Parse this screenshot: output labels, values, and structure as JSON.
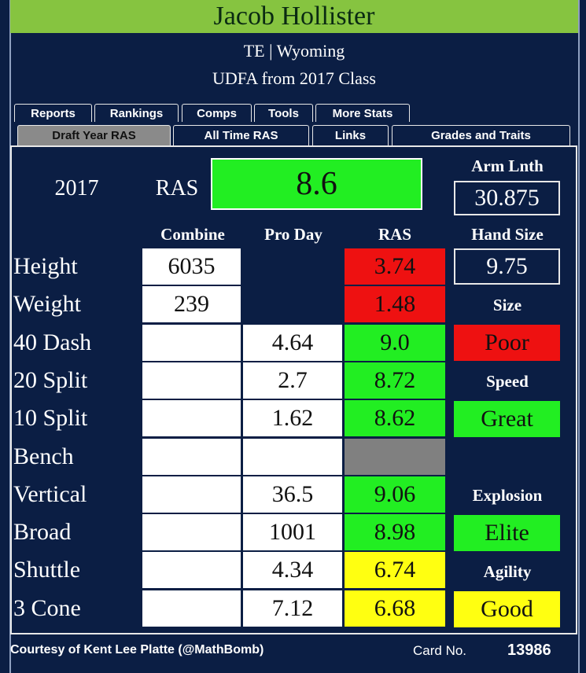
{
  "header": {
    "name": "Jacob Hollister",
    "position_school": "TE | Wyoming",
    "status": "UDFA from 2017 Class"
  },
  "tabs": {
    "row1": [
      "Reports",
      "Rankings",
      "Comps",
      "Tools",
      "More Stats"
    ],
    "row2": [
      "Draft Year RAS",
      "All Time RAS",
      "Links",
      "Grades and Traits"
    ]
  },
  "summary": {
    "year": "2017",
    "label": "RAS",
    "score": "8.6",
    "color": "#22ee22"
  },
  "columns": {
    "combine": "Combine",
    "pro_day": "Pro Day",
    "ras": "RAS"
  },
  "rows": [
    {
      "label": "Height",
      "combine": "6035",
      "pro_day": null,
      "ras": "3.74",
      "color": "#ee1111"
    },
    {
      "label": "Weight",
      "combine": "239",
      "pro_day": null,
      "ras": "1.48",
      "color": "#ee1111"
    },
    {
      "label": "40 Dash",
      "combine": null,
      "pro_day": "4.64",
      "ras": "9.0",
      "color": "#22ee22"
    },
    {
      "label": "20 Split",
      "combine": null,
      "pro_day": "2.7",
      "ras": "8.72",
      "color": "#22ee22"
    },
    {
      "label": "10 Split",
      "combine": null,
      "pro_day": "1.62",
      "ras": "8.62",
      "color": "#22ee22"
    },
    {
      "label": "Bench",
      "combine": null,
      "pro_day": null,
      "ras": null,
      "color": "#808080"
    },
    {
      "label": "Vertical",
      "combine": null,
      "pro_day": "36.5",
      "ras": "9.06",
      "color": "#22ee22"
    },
    {
      "label": "Broad",
      "combine": null,
      "pro_day": "1001",
      "ras": "8.98",
      "color": "#22ee22"
    },
    {
      "label": "Shuttle",
      "combine": null,
      "pro_day": "4.34",
      "ras": "6.74",
      "color": "#ffff11"
    },
    {
      "label": "3 Cone",
      "combine": null,
      "pro_day": "7.12",
      "ras": "6.68",
      "color": "#ffff11"
    }
  ],
  "measurements": {
    "arm_label": "Arm Lnth",
    "arm_value": "30.875",
    "hand_label": "Hand Size",
    "hand_value": "9.75"
  },
  "grades": [
    {
      "label": "Size",
      "value": "Poor",
      "color": "#ee1111"
    },
    {
      "label": "Speed",
      "value": "Great",
      "color": "#22ee22"
    },
    {
      "label": "Explosion",
      "value": "Elite",
      "color": "#22ee22"
    },
    {
      "label": "Agility",
      "value": "Good",
      "color": "#ffff11"
    }
  ],
  "footer": {
    "credit": "Courtesy of Kent Lee Platte (@MathBomb)",
    "card_label": "Card No.",
    "card_number": "13986"
  }
}
